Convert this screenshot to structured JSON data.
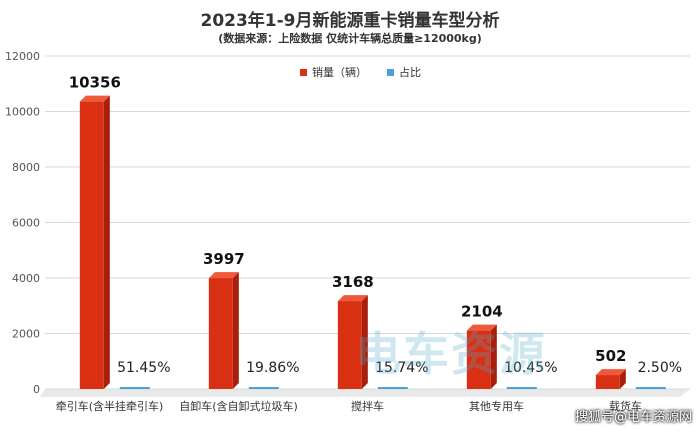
{
  "title": "2023年1-9月新能源重卡销量车型分析",
  "subtitle": "(数据来源：上险数据 仅统计车辆总质量≥12000kg)",
  "legend": {
    "sales_label": "销量（辆）",
    "share_label": "占比"
  },
  "colors": {
    "sales": "#d93014",
    "share": "#4aa3d8"
  },
  "watermark": "搜狐号@电车资源网",
  "watermark_logo": "电车资源",
  "chart_data": {
    "type": "bar",
    "title": "2023年1-9月新能源重卡销量车型分析",
    "subtitle": "(数据来源：上险数据 仅统计车辆总质量≥12000kg)",
    "categories": [
      "牵引车(含半挂牵引车)",
      "自卸车(含自卸式垃圾车)",
      "搅拌车",
      "其他专用车",
      "载货车"
    ],
    "series": [
      {
        "name": "销量（辆）",
        "values": [
          10356,
          3997,
          3168,
          2104,
          502
        ]
      },
      {
        "name": "占比",
        "values": [
          51.45,
          19.86,
          15.74,
          10.45,
          2.5
        ],
        "labels": [
          "51.45%",
          "19.86%",
          "15.74%",
          "10.45%",
          "2.50%"
        ]
      }
    ],
    "yticks": [
      "0",
      "2000",
      "4000",
      "6000",
      "8000",
      "10000",
      "12000"
    ],
    "ylim": [
      0,
      12000
    ],
    "legend_position": "top",
    "grid": true
  }
}
